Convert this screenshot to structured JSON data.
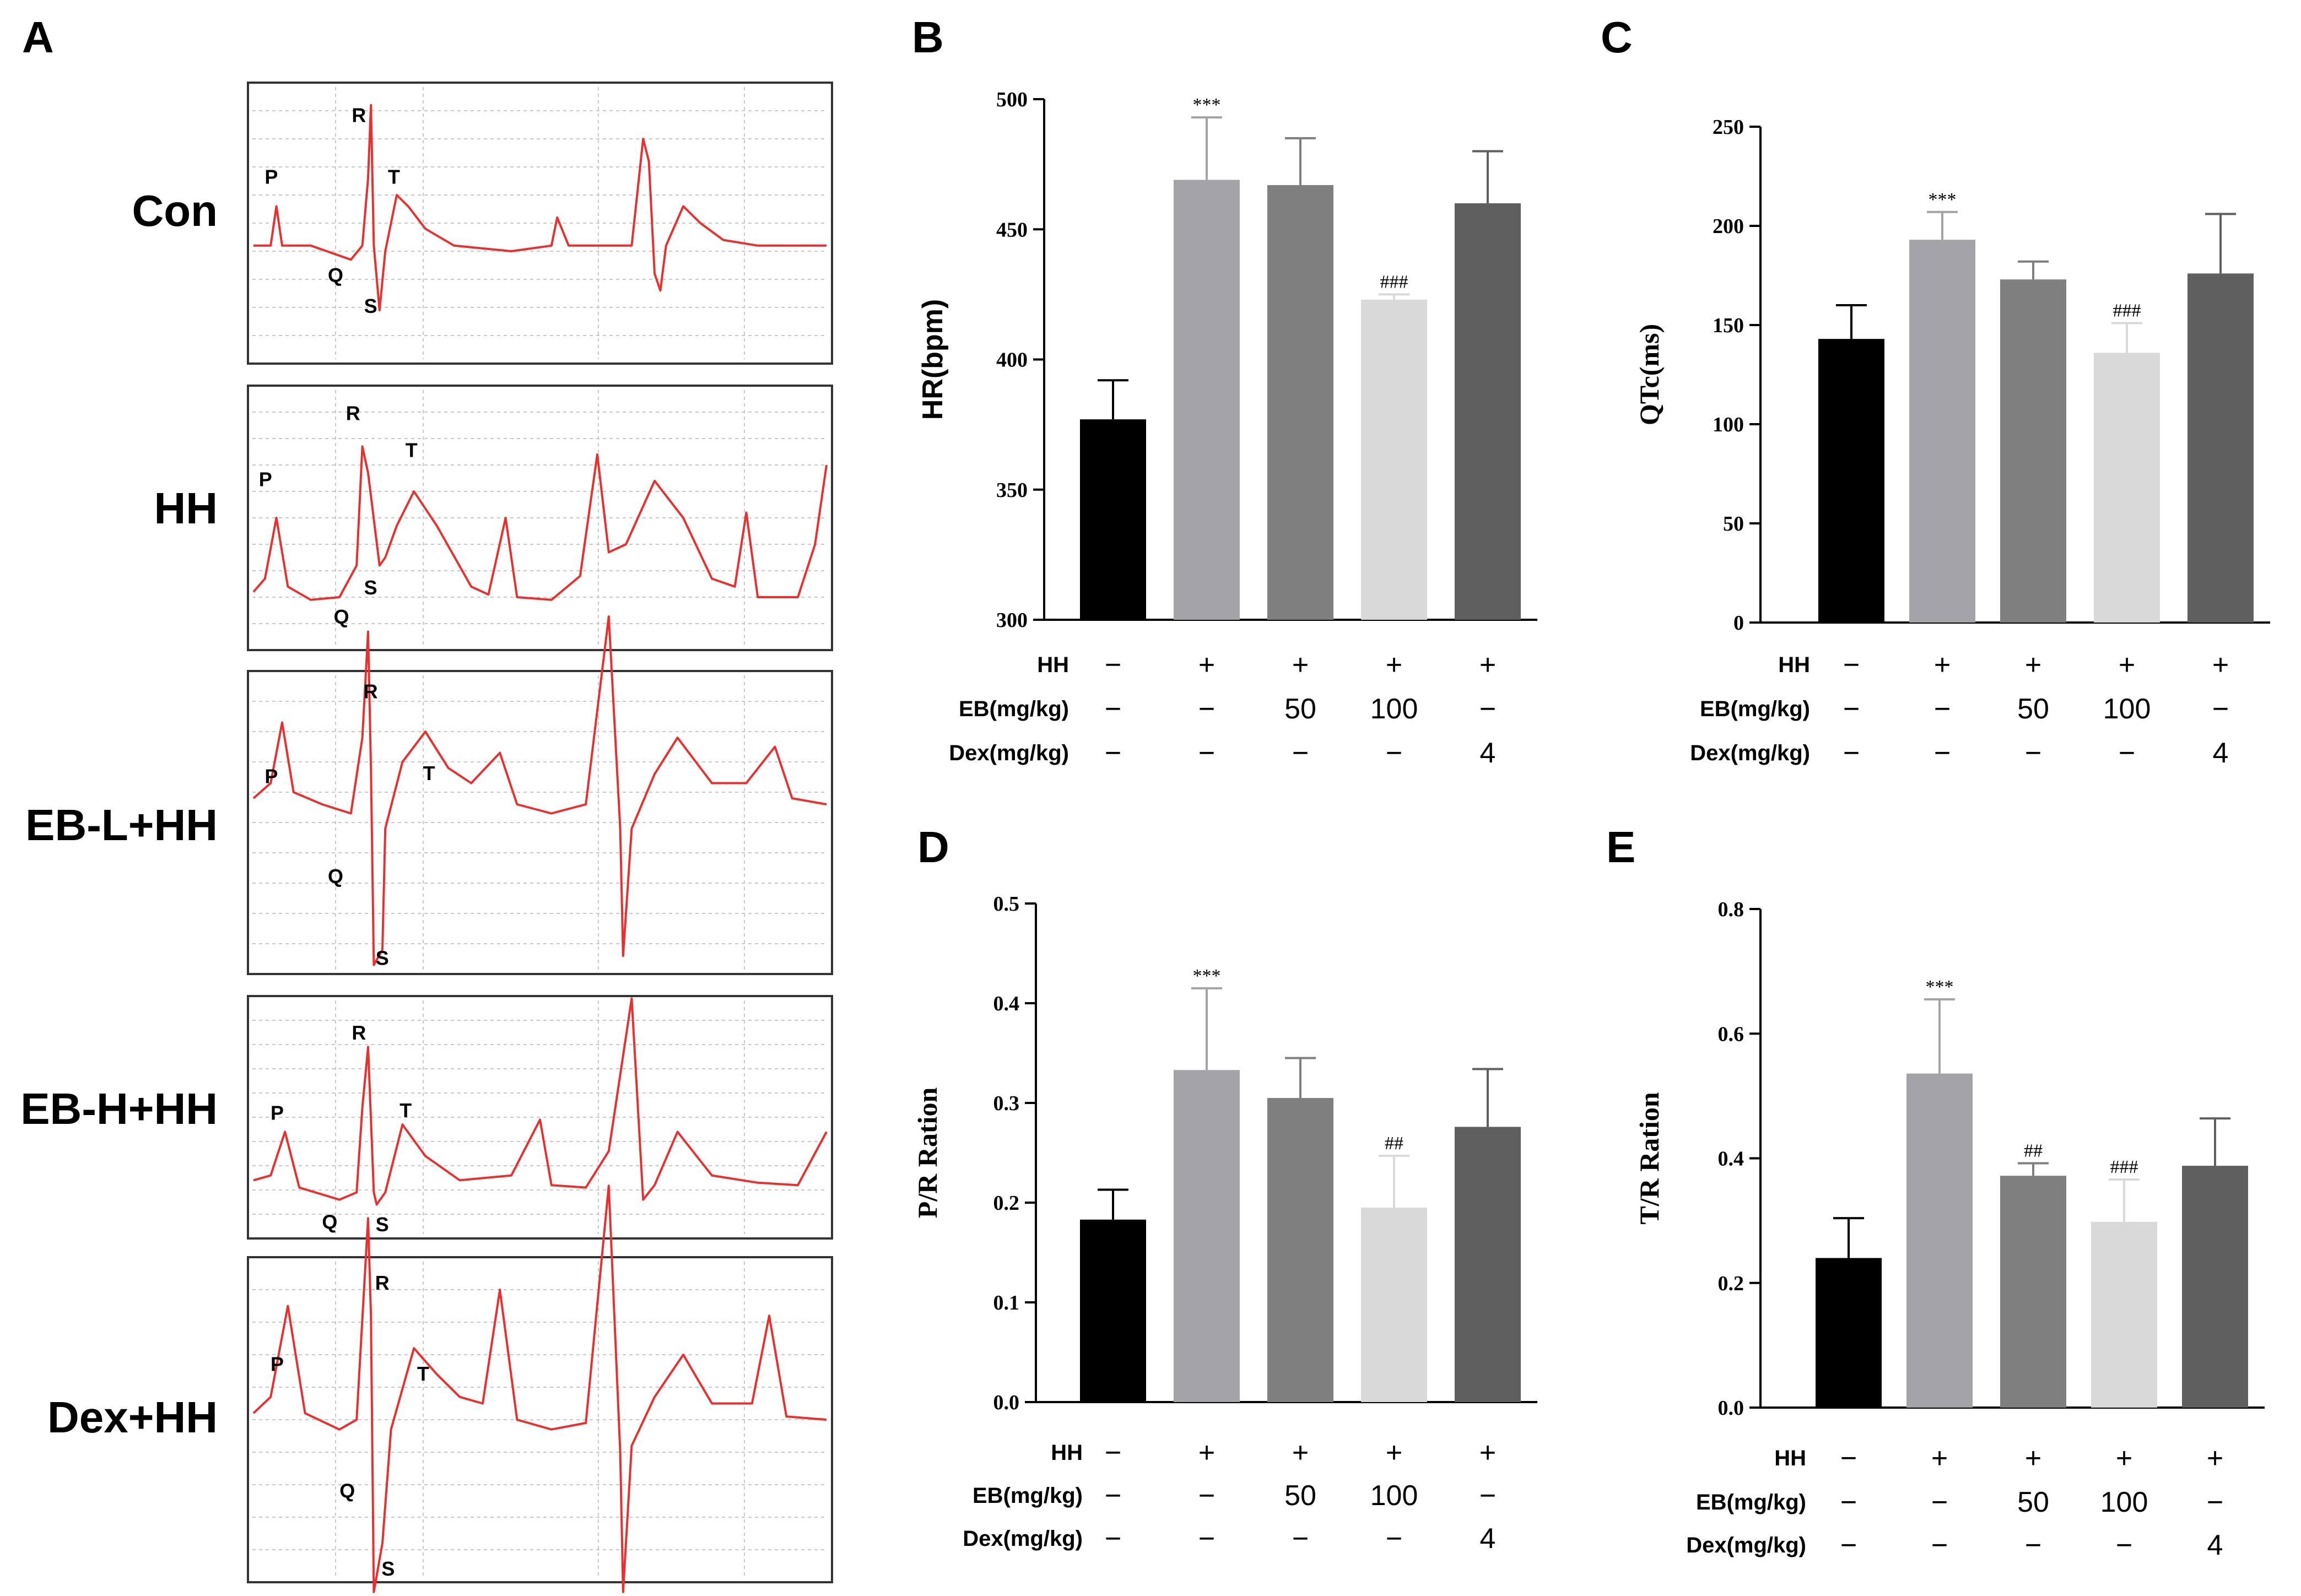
{
  "panel_a": {
    "letter": "A",
    "traces": [
      {
        "label": "Con",
        "waves": [
          "P",
          "Q",
          "R",
          "S",
          "T"
        ]
      },
      {
        "label": "HH",
        "waves": [
          "P",
          "Q",
          "R",
          "S",
          "T"
        ]
      },
      {
        "label": "EB-L+HH",
        "waves": [
          "P",
          "Q",
          "R",
          "S",
          "T"
        ]
      },
      {
        "label": "EB-H+HH",
        "waves": [
          "P",
          "Q",
          "R",
          "S",
          "T"
        ]
      },
      {
        "label": "Dex+HH",
        "waves": [
          "P",
          "Q",
          "R",
          "S",
          "T"
        ]
      }
    ],
    "trace_color": "#e8312f"
  },
  "conditions": {
    "labels": [
      "HH",
      "EB(mg/kg)",
      "Dex(mg/kg)"
    ],
    "rows": [
      [
        "−",
        "+",
        "+",
        "+",
        "+"
      ],
      [
        "−",
        "−",
        "50",
        "100",
        "−"
      ],
      [
        "−",
        "−",
        "−",
        "−",
        "4"
      ]
    ]
  },
  "bar_colors": [
    "#000000",
    "#a3a3a8",
    "#7f7f7f",
    "#d9d9d9",
    "#5f5f5f"
  ],
  "chart_data": [
    {
      "panel": "B",
      "type": "bar",
      "categories": [
        "Con",
        "HH",
        "EB-L+HH",
        "EB-H+HH",
        "Dex+HH"
      ],
      "values": [
        377,
        469,
        467,
        423,
        460
      ],
      "errors": [
        15,
        24,
        18,
        2,
        20
      ],
      "ylabel": "HR(bpm)",
      "ylim": [
        300,
        500
      ],
      "yticks": [
        "300",
        "350",
        "400",
        "450",
        "500"
      ],
      "significance": [
        "",
        "***",
        "",
        "###",
        ""
      ]
    },
    {
      "panel": "C",
      "type": "bar",
      "categories": [
        "Con",
        "HH",
        "EB-L+HH",
        "EB-H+HH",
        "Dex+HH"
      ],
      "values": [
        143,
        193,
        173,
        136,
        176
      ],
      "errors": [
        17,
        14,
        9,
        15,
        30
      ],
      "ylabel": "QTc(ms)",
      "ylim": [
        0,
        250
      ],
      "yticks": [
        "0",
        "50",
        "100",
        "150",
        "200",
        "250"
      ],
      "significance": [
        "",
        "***",
        "",
        "###",
        ""
      ]
    },
    {
      "panel": "D",
      "type": "bar",
      "categories": [
        "Con",
        "HH",
        "EB-L+HH",
        "EB-H+HH",
        "Dex+HH"
      ],
      "values": [
        0.183,
        0.333,
        0.305,
        0.195,
        0.276
      ],
      "errors": [
        0.03,
        0.082,
        0.04,
        0.052,
        0.058
      ],
      "ylabel": "P/R Ration",
      "ylim": [
        0,
        0.5
      ],
      "yticks": [
        "0.0",
        "0.1",
        "0.2",
        "0.3",
        "0.4",
        "0.5"
      ],
      "significance": [
        "",
        "***",
        "",
        "##",
        ""
      ]
    },
    {
      "panel": "E",
      "type": "bar",
      "categories": [
        "Con",
        "HH",
        "EB-L+HH",
        "EB-H+HH",
        "Dex+HH"
      ],
      "values": [
        0.24,
        0.536,
        0.372,
        0.298,
        0.388
      ],
      "errors": [
        0.064,
        0.119,
        0.02,
        0.068,
        0.076
      ],
      "ylabel": "T/R Ration",
      "ylim": [
        0,
        0.8
      ],
      "yticks": [
        "0.0",
        "0.2",
        "0.4",
        "0.6",
        "0.8"
      ],
      "significance": [
        "",
        "***",
        "##",
        "###",
        ""
      ]
    }
  ]
}
